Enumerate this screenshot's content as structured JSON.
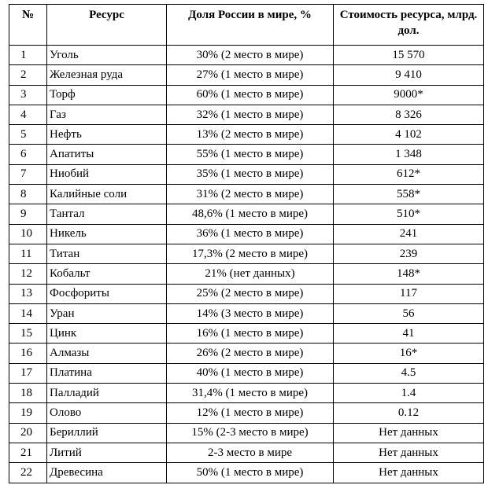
{
  "headers": {
    "num": "№",
    "resource": "Ресурс",
    "share": "Доля России в мире, %",
    "value": "Стоимость ресурса, млрд. дол."
  },
  "rows": [
    {
      "num": "1",
      "resource": "Уголь",
      "share": "30% (2 место в мире)",
      "value": "15 570"
    },
    {
      "num": "2",
      "resource": "Железная руда",
      "share": "27% (1 место в мире)",
      "value": "9 410"
    },
    {
      "num": "3",
      "resource": "Торф",
      "share": "60% (1 место в мире)",
      "value": "9000*"
    },
    {
      "num": "4",
      "resource": "Газ",
      "share": "32% (1 место в мире)",
      "value": "8 326"
    },
    {
      "num": "5",
      "resource": "Нефть",
      "share": "13% (2 место в мире)",
      "value": "4 102"
    },
    {
      "num": "6",
      "resource": "Апатиты",
      "share": "55% (1 место в мире)",
      "value": "1 348"
    },
    {
      "num": "7",
      "resource": "Ниобий",
      "share": "35% (1 место в мире)",
      "value": "612*"
    },
    {
      "num": "8",
      "resource": "Калийные соли",
      "share": "31% (2 место в мире)",
      "value": "558*"
    },
    {
      "num": "9",
      "resource": "Тантал",
      "share": "48,6% (1 место в мире)",
      "value": "510*"
    },
    {
      "num": "10",
      "resource": "Никель",
      "share": "36% (1 место в мире)",
      "value": "241"
    },
    {
      "num": "11",
      "resource": "Титан",
      "share": "17,3% (2 место в мире)",
      "value": "239"
    },
    {
      "num": "12",
      "resource": "Кобальт",
      "share": "21% (нет данных)",
      "value": "148*"
    },
    {
      "num": "13",
      "resource": "Фосфориты",
      "share": "25% (2 место в мире)",
      "value": "117"
    },
    {
      "num": "14",
      "resource": "Уран",
      "share": "14% (3 место в мире)",
      "value": "56"
    },
    {
      "num": "15",
      "resource": "Цинк",
      "share": "16% (1 место в мире)",
      "value": "41"
    },
    {
      "num": "16",
      "resource": "Алмазы",
      "share": "26% (2 место в мире)",
      "value": "16*"
    },
    {
      "num": "17",
      "resource": "Платина",
      "share": "40% (1 место в мире)",
      "value": "4.5"
    },
    {
      "num": "18",
      "resource": "Палладий",
      "share": "31,4% (1 место в мире)",
      "value": "1.4"
    },
    {
      "num": "19",
      "resource": "Олово",
      "share": "12% (1 место в мире)",
      "value": "0.12"
    },
    {
      "num": "20",
      "resource": "Бериллий",
      "share": "15% (2-3 место в мире)",
      "value": "Нет данных"
    },
    {
      "num": "21",
      "resource": "Литий",
      "share": "2-3 место в мире",
      "value": "Нет данных"
    },
    {
      "num": "22",
      "resource": "Древесина",
      "share": "50% (1 место в мире)",
      "value": "Нет данных"
    }
  ]
}
